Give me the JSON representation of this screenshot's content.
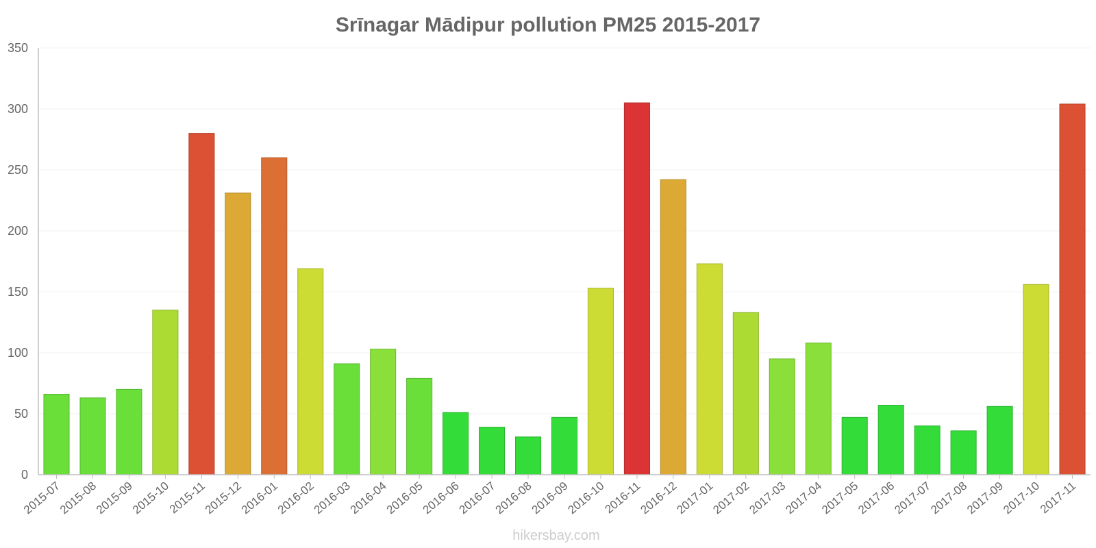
{
  "chart_data": {
    "type": "bar",
    "title": "Srīnagar Mādipur pollution PM25 2015-2017",
    "xlabel": "",
    "ylabel": "",
    "ylim": [
      0,
      350
    ],
    "yticks": [
      "0",
      "50",
      "100",
      "150",
      "200",
      "250",
      "300",
      "350"
    ],
    "grid": true,
    "categories": [
      "2015-07",
      "2015-08",
      "2015-09",
      "2015-10",
      "2015-11",
      "2015-12",
      "2016-01",
      "2016-02",
      "2016-03",
      "2016-04",
      "2016-05",
      "2016-06",
      "2016-07",
      "2016-08",
      "2016-09",
      "2016-10",
      "2016-11",
      "2016-12",
      "2017-01",
      "2017-02",
      "2017-03",
      "2017-04",
      "2017-05",
      "2017-06",
      "2017-07",
      "2017-08",
      "2017-09",
      "2017-10",
      "2017-11"
    ],
    "values": [
      66,
      63,
      70,
      135,
      280,
      231,
      260,
      169,
      91,
      103,
      79,
      51,
      39,
      31,
      47,
      153,
      305,
      242,
      173,
      133,
      95,
      108,
      47,
      57,
      40,
      36,
      56,
      156,
      304
    ],
    "colors": [
      "#6adf3a",
      "#6adf3a",
      "#6adf3a",
      "#acdc34",
      "#dc5034",
      "#dca934",
      "#dc6f34",
      "#ccdc34",
      "#6adf3a",
      "#8adf3a",
      "#6adf3a",
      "#34dc3a",
      "#34dc3a",
      "#34dc3a",
      "#34dc3a",
      "#ccdc34",
      "#dc3434",
      "#dca934",
      "#ccdc34",
      "#acdc34",
      "#8adf3a",
      "#8adf3a",
      "#34dc3a",
      "#34dc3a",
      "#34dc3a",
      "#34dc3a",
      "#34dc3a",
      "#ccdc34",
      "#dc5034"
    ]
  },
  "footer": {
    "watermark": "hikersbay.com"
  }
}
